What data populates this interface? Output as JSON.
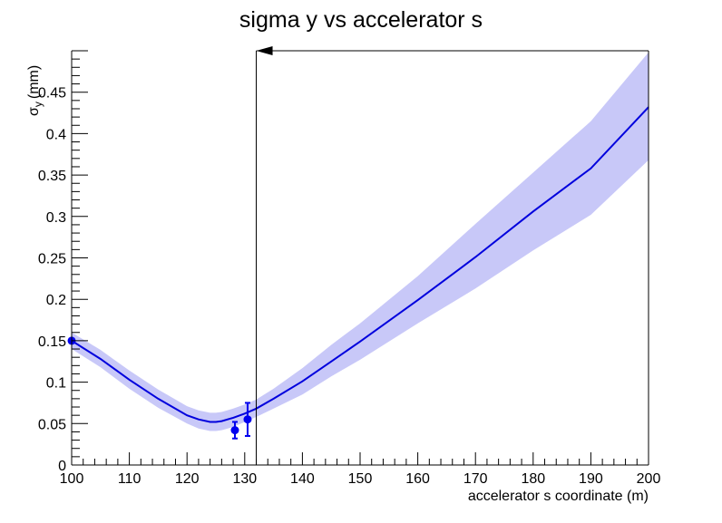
{
  "chart_data": {
    "type": "line",
    "title": "sigma y vs accelerator s",
    "xlabel": "accelerator s coordinate (m)",
    "ylabel": "σ",
    "ylabel_sub": "y",
    "ylabel_unit": "(mm)",
    "xlim": [
      100,
      200
    ],
    "ylim": [
      0,
      0.5
    ],
    "x_ticks": [
      100,
      110,
      120,
      130,
      140,
      150,
      160,
      170,
      180,
      190,
      200
    ],
    "x_tick_labels": [
      "100",
      "110",
      "120",
      "130",
      "140",
      "150",
      "160",
      "170",
      "180",
      "190",
      "200"
    ],
    "y_ticks": [
      0,
      0.05,
      0.1,
      0.15,
      0.2,
      0.25,
      0.3,
      0.35,
      0.4,
      0.45
    ],
    "y_tick_labels": [
      "0",
      "0.05",
      "0.1",
      "0.15",
      "0.2",
      "0.25",
      "0.3",
      "0.35",
      "0.4",
      "0.45"
    ],
    "grid": false,
    "colors": {
      "line": "#0000dd",
      "band": "#c8c8f8",
      "points": "#0000ee",
      "axes": "#000000"
    },
    "series": [
      {
        "kind": "fit_line",
        "x": [
          100,
          105,
          110,
          115,
          120,
          122,
          124,
          125,
          126,
          128,
          130,
          132,
          135,
          140,
          145,
          150,
          160,
          170,
          180,
          190,
          200
        ],
        "y": [
          0.15,
          0.128,
          0.103,
          0.08,
          0.06,
          0.055,
          0.052,
          0.052,
          0.053,
          0.057,
          0.062,
          0.068,
          0.08,
          0.101,
          0.125,
          0.149,
          0.199,
          0.251,
          0.306,
          0.358,
          0.432
        ]
      },
      {
        "kind": "error_band",
        "x": [
          100,
          105,
          110,
          115,
          120,
          122,
          124,
          125,
          126,
          128,
          130,
          132,
          135,
          140,
          145,
          150,
          160,
          170,
          180,
          190,
          200
        ],
        "y_low": [
          0.14,
          0.118,
          0.092,
          0.069,
          0.05,
          0.044,
          0.041,
          0.041,
          0.042,
          0.046,
          0.052,
          0.058,
          0.068,
          0.085,
          0.107,
          0.127,
          0.171,
          0.213,
          0.259,
          0.302,
          0.368
        ],
        "y_high": [
          0.16,
          0.139,
          0.114,
          0.091,
          0.071,
          0.066,
          0.063,
          0.063,
          0.064,
          0.068,
          0.073,
          0.079,
          0.092,
          0.117,
          0.145,
          0.171,
          0.228,
          0.291,
          0.353,
          0.415,
          0.498
        ]
      },
      {
        "kind": "data_points",
        "x": [
          100,
          128.3,
          130.5
        ],
        "y": [
          0.15,
          0.042,
          0.055
        ],
        "err": [
          0.0,
          0.01,
          0.02
        ]
      }
    ],
    "marker": {
      "x": 132,
      "arrow_direction": "left"
    }
  }
}
